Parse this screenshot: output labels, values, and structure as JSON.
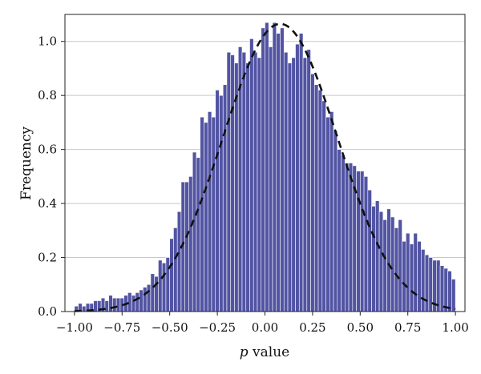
{
  "chart_data": {
    "type": "bar",
    "xlabel_italic": "p",
    "xlabel_rest": " value",
    "ylabel": "Frequency",
    "xlim": [
      -1.05,
      1.05
    ],
    "ylim": [
      0,
      1.1
    ],
    "grid": "horizontal",
    "bar_color": "#5254a3",
    "bar_edge_color": "#ffffff",
    "curve_color": "#111111",
    "x_ticks": [
      -1.0,
      -0.75,
      -0.5,
      -0.25,
      0.0,
      0.25,
      0.5,
      0.75,
      1.0
    ],
    "x_tick_labels": [
      "−1.00",
      "−0.75",
      "−0.50",
      "−0.25",
      "0.00",
      "0.25",
      "0.50",
      "0.75",
      "1.00"
    ],
    "y_ticks": [
      0.0,
      0.2,
      0.4,
      0.6,
      0.8,
      1.0
    ],
    "y_tick_labels": [
      "0.0",
      "0.2",
      "0.4",
      "0.6",
      "0.8",
      "1.0"
    ],
    "histogram": {
      "bin_start": -1.0,
      "bin_width": 0.02,
      "values": [
        0.02,
        0.03,
        0.02,
        0.03,
        0.03,
        0.04,
        0.04,
        0.05,
        0.04,
        0.06,
        0.05,
        0.05,
        0.05,
        0.06,
        0.07,
        0.06,
        0.07,
        0.08,
        0.09,
        0.1,
        0.14,
        0.13,
        0.19,
        0.18,
        0.2,
        0.27,
        0.31,
        0.37,
        0.48,
        0.48,
        0.5,
        0.59,
        0.57,
        0.72,
        0.7,
        0.74,
        0.72,
        0.82,
        0.8,
        0.84,
        0.96,
        0.95,
        0.92,
        0.98,
        0.96,
        0.92,
        1.01,
        0.96,
        0.94,
        1.05,
        1.07,
        0.98,
        1.07,
        1.03,
        1.05,
        0.96,
        0.92,
        0.94,
        0.99,
        1.03,
        0.94,
        0.97,
        0.88,
        0.84,
        0.82,
        0.78,
        0.72,
        0.74,
        0.67,
        0.6,
        0.58,
        0.55,
        0.55,
        0.54,
        0.52,
        0.52,
        0.5,
        0.45,
        0.39,
        0.41,
        0.37,
        0.34,
        0.38,
        0.35,
        0.31,
        0.34,
        0.26,
        0.29,
        0.25,
        0.29,
        0.26,
        0.23,
        0.21,
        0.2,
        0.19,
        0.19,
        0.17,
        0.16,
        0.15,
        0.12
      ]
    },
    "fitted_curve": {
      "style": "dashed",
      "distribution": "normal",
      "mean": 0.08,
      "std": 0.3,
      "peak": 1.065
    }
  }
}
